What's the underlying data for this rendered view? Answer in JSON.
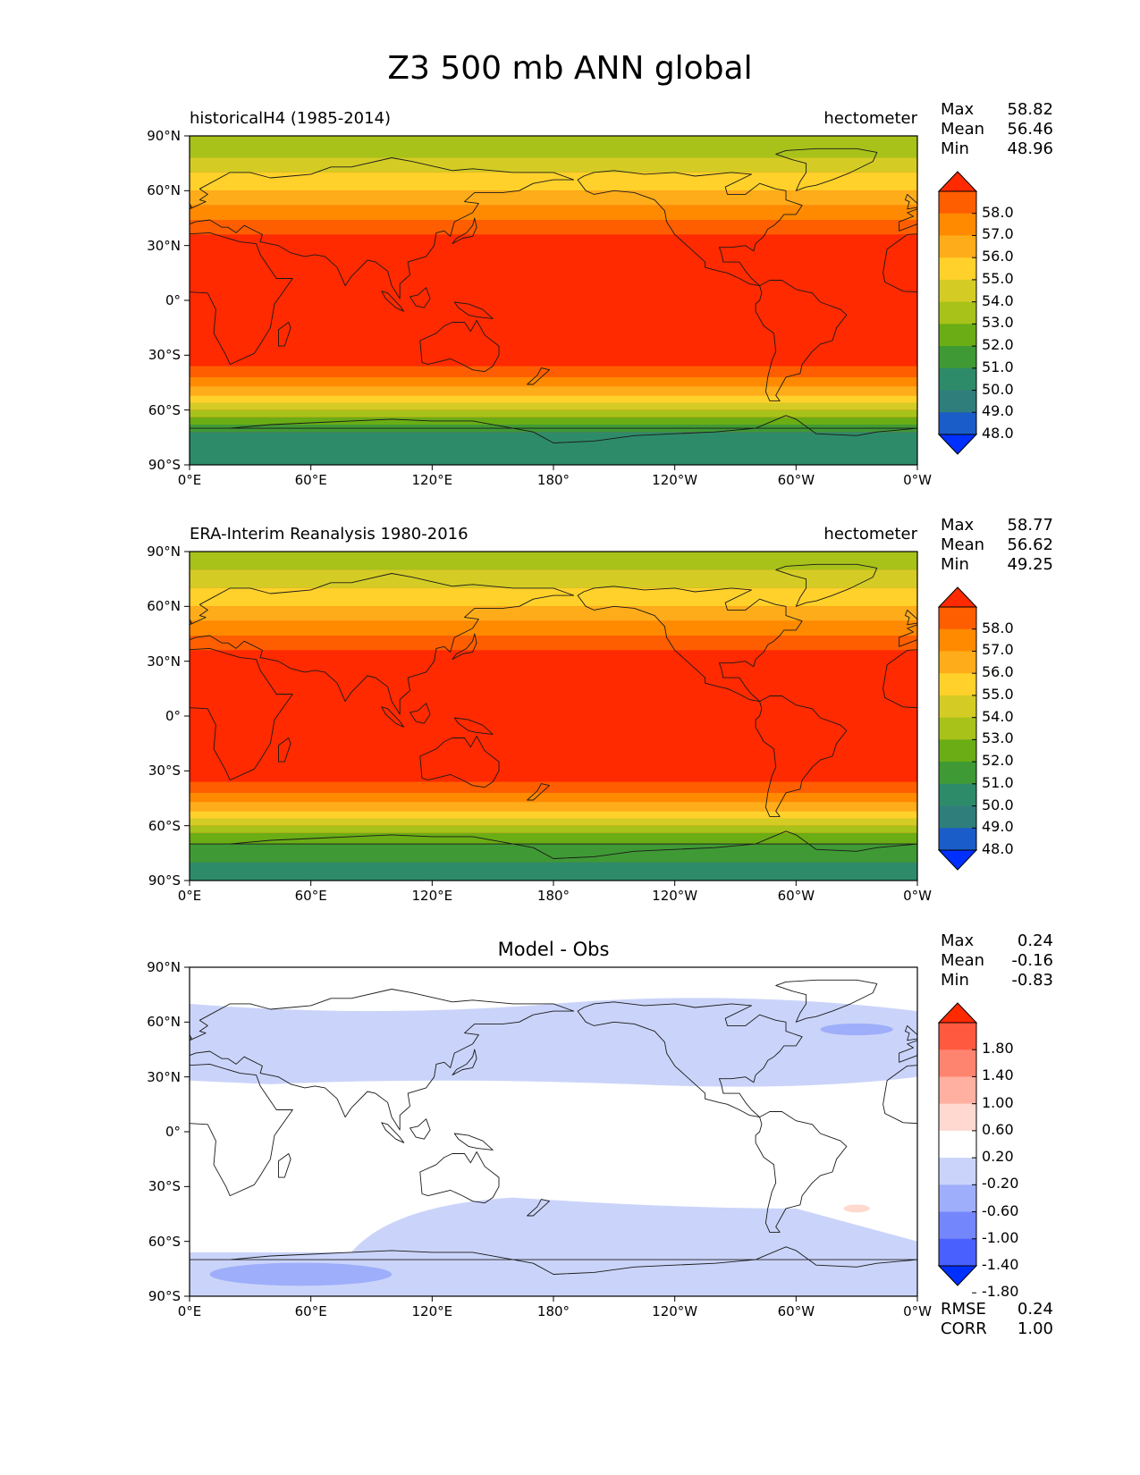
{
  "title": "Z3 500 mb ANN global",
  "chart_data": [
    {
      "type": "heatmap",
      "panel": "test",
      "title_left": "historicalH4 (1985-2014)",
      "title_center": "",
      "units": "hectometer",
      "xlim": [
        0,
        360
      ],
      "ylim": [
        -90,
        90
      ],
      "xticks": [
        "0°E",
        "60°E",
        "120°E",
        "180°",
        "120°W",
        "60°W",
        "0°W"
      ],
      "yticks": [
        "90°N",
        "60°N",
        "30°N",
        "0°",
        "30°S",
        "60°S",
        "90°S"
      ],
      "stats": [
        {
          "name": "Max",
          "value": "58.82"
        },
        {
          "name": "Mean",
          "value": "56.46"
        },
        {
          "name": "Min",
          "value": "48.96"
        }
      ],
      "colorbar": {
        "labels": [
          "58.0",
          "57.0",
          "56.0",
          "55.0",
          "54.0",
          "53.0",
          "52.0",
          "51.0",
          "50.0",
          "49.0",
          "48.0"
        ],
        "colors": [
          "#ff2a00",
          "#ff5e00",
          "#ff8a00",
          "#ffac1a",
          "#ffd12a",
          "#d4cc25",
          "#a8c21a",
          "#6aad15",
          "#3f9a35",
          "#2e8b6a",
          "#2f7e7b",
          "#1a5dc8",
          "#0030ff"
        ]
      },
      "field": {
        "description": "zonal bands of geopotential height (hectometer) by latitude",
        "bands": [
          {
            "lat_from": 90,
            "lat_to": 78,
            "value": 52.0
          },
          {
            "lat_from": 78,
            "lat_to": 70,
            "value": 53.0
          },
          {
            "lat_from": 70,
            "lat_to": 60,
            "value": 54.0
          },
          {
            "lat_from": 60,
            "lat_to": 52,
            "value": 55.0
          },
          {
            "lat_from": 52,
            "lat_to": 44,
            "value": 56.0
          },
          {
            "lat_from": 44,
            "lat_to": 36,
            "value": 57.0
          },
          {
            "lat_from": 36,
            "lat_to": 28,
            "value": 58.0
          },
          {
            "lat_from": 28,
            "lat_to": -28,
            "value": 58.5
          },
          {
            "lat_from": -28,
            "lat_to": -36,
            "value": 58.0
          },
          {
            "lat_from": -36,
            "lat_to": -42,
            "value": 57.0
          },
          {
            "lat_from": -42,
            "lat_to": -47,
            "value": 56.0
          },
          {
            "lat_from": -47,
            "lat_to": -52,
            "value": 55.0
          },
          {
            "lat_from": -52,
            "lat_to": -56,
            "value": 54.0
          },
          {
            "lat_from": -56,
            "lat_to": -60,
            "value": 53.0
          },
          {
            "lat_from": -60,
            "lat_to": -64,
            "value": 52.0
          },
          {
            "lat_from": -64,
            "lat_to": -68,
            "value": 51.0
          },
          {
            "lat_from": -68,
            "lat_to": -72,
            "value": 50.0
          },
          {
            "lat_from": -72,
            "lat_to": -90,
            "value": 49.0
          }
        ]
      }
    },
    {
      "type": "heatmap",
      "panel": "reference",
      "title_left": "ERA-Interim Reanalysis 1980-2016",
      "title_center": "",
      "units": "hectometer",
      "xlim": [
        0,
        360
      ],
      "ylim": [
        -90,
        90
      ],
      "xticks": [
        "0°E",
        "60°E",
        "120°E",
        "180°",
        "120°W",
        "60°W",
        "0°W"
      ],
      "yticks": [
        "90°N",
        "60°N",
        "30°N",
        "0°",
        "30°S",
        "60°S",
        "90°S"
      ],
      "stats": [
        {
          "name": "Max",
          "value": "58.77"
        },
        {
          "name": "Mean",
          "value": "56.62"
        },
        {
          "name": "Min",
          "value": "49.25"
        }
      ],
      "colorbar": {
        "labels": [
          "58.0",
          "57.0",
          "56.0",
          "55.0",
          "54.0",
          "53.0",
          "52.0",
          "51.0",
          "50.0",
          "49.0",
          "48.0"
        ],
        "colors": [
          "#ff2a00",
          "#ff5e00",
          "#ff8a00",
          "#ffac1a",
          "#ffd12a",
          "#d4cc25",
          "#a8c21a",
          "#6aad15",
          "#3f9a35",
          "#2e8b6a",
          "#2f7e7b",
          "#1a5dc8",
          "#0030ff"
        ]
      },
      "field": {
        "description": "zonal bands of geopotential height (hectometer) by latitude",
        "bands": [
          {
            "lat_from": 90,
            "lat_to": 80,
            "value": 52.0
          },
          {
            "lat_from": 80,
            "lat_to": 70,
            "value": 53.0
          },
          {
            "lat_from": 70,
            "lat_to": 60,
            "value": 54.0
          },
          {
            "lat_from": 60,
            "lat_to": 52,
            "value": 55.0
          },
          {
            "lat_from": 52,
            "lat_to": 44,
            "value": 56.0
          },
          {
            "lat_from": 44,
            "lat_to": 36,
            "value": 57.0
          },
          {
            "lat_from": 36,
            "lat_to": 28,
            "value": 58.0
          },
          {
            "lat_from": 28,
            "lat_to": -28,
            "value": 58.5
          },
          {
            "lat_from": -28,
            "lat_to": -36,
            "value": 58.0
          },
          {
            "lat_from": -36,
            "lat_to": -42,
            "value": 57.0
          },
          {
            "lat_from": -42,
            "lat_to": -47,
            "value": 56.0
          },
          {
            "lat_from": -47,
            "lat_to": -52,
            "value": 55.0
          },
          {
            "lat_from": -52,
            "lat_to": -56,
            "value": 54.0
          },
          {
            "lat_from": -56,
            "lat_to": -60,
            "value": 53.0
          },
          {
            "lat_from": -60,
            "lat_to": -64,
            "value": 52.0
          },
          {
            "lat_from": -64,
            "lat_to": -70,
            "value": 51.0
          },
          {
            "lat_from": -70,
            "lat_to": -80,
            "value": 50.0
          },
          {
            "lat_from": -80,
            "lat_to": -90,
            "value": 49.0
          }
        ]
      }
    },
    {
      "type": "heatmap",
      "panel": "difference",
      "title_left": "",
      "title_center": "Model - Obs",
      "units": "",
      "xlim": [
        0,
        360
      ],
      "ylim": [
        -90,
        90
      ],
      "xticks": [
        "0°E",
        "60°E",
        "120°E",
        "180°",
        "120°W",
        "60°W",
        "0°W"
      ],
      "yticks": [
        "90°N",
        "60°N",
        "30°N",
        "0°",
        "30°S",
        "60°S",
        "90°S"
      ],
      "stats": [
        {
          "name": "Max",
          "value": "0.24"
        },
        {
          "name": "Mean",
          "value": "-0.16"
        },
        {
          "name": "Min",
          "value": "-0.83"
        }
      ],
      "extra_stats": [
        {
          "name": "RMSE",
          "value": "0.24"
        },
        {
          "name": "CORR",
          "value": "1.00"
        }
      ],
      "colorbar": {
        "labels": [
          "1.80",
          "1.40",
          "1.00",
          "0.60",
          "0.20",
          "-0.20",
          "-0.60",
          "-1.00",
          "-1.40",
          "-1.80"
        ],
        "colors": [
          "#ff2a00",
          "#ff5a40",
          "#ff8470",
          "#ffb0a0",
          "#ffd8d0",
          "#ffffff",
          "#cad4fa",
          "#9eaefa",
          "#7486fc",
          "#4a60fe",
          "#0030ff"
        ]
      },
      "field": {
        "description": "difference field; mostly near zero with negative bands in mid-latitudes",
        "regions": [
          {
            "lat_from": 68,
            "lat_to": 26,
            "value": -0.4
          },
          {
            "lat_from": -34,
            "lat_to": -90,
            "value": -0.4
          },
          {
            "lat_from": -70,
            "lat_to": -90,
            "value": -0.8
          },
          {
            "lat_from": 58,
            "lat_to": 50,
            "value": -0.8
          },
          {
            "lat_from": -40,
            "lat_to": -46,
            "value": 0.3
          }
        ]
      }
    }
  ]
}
